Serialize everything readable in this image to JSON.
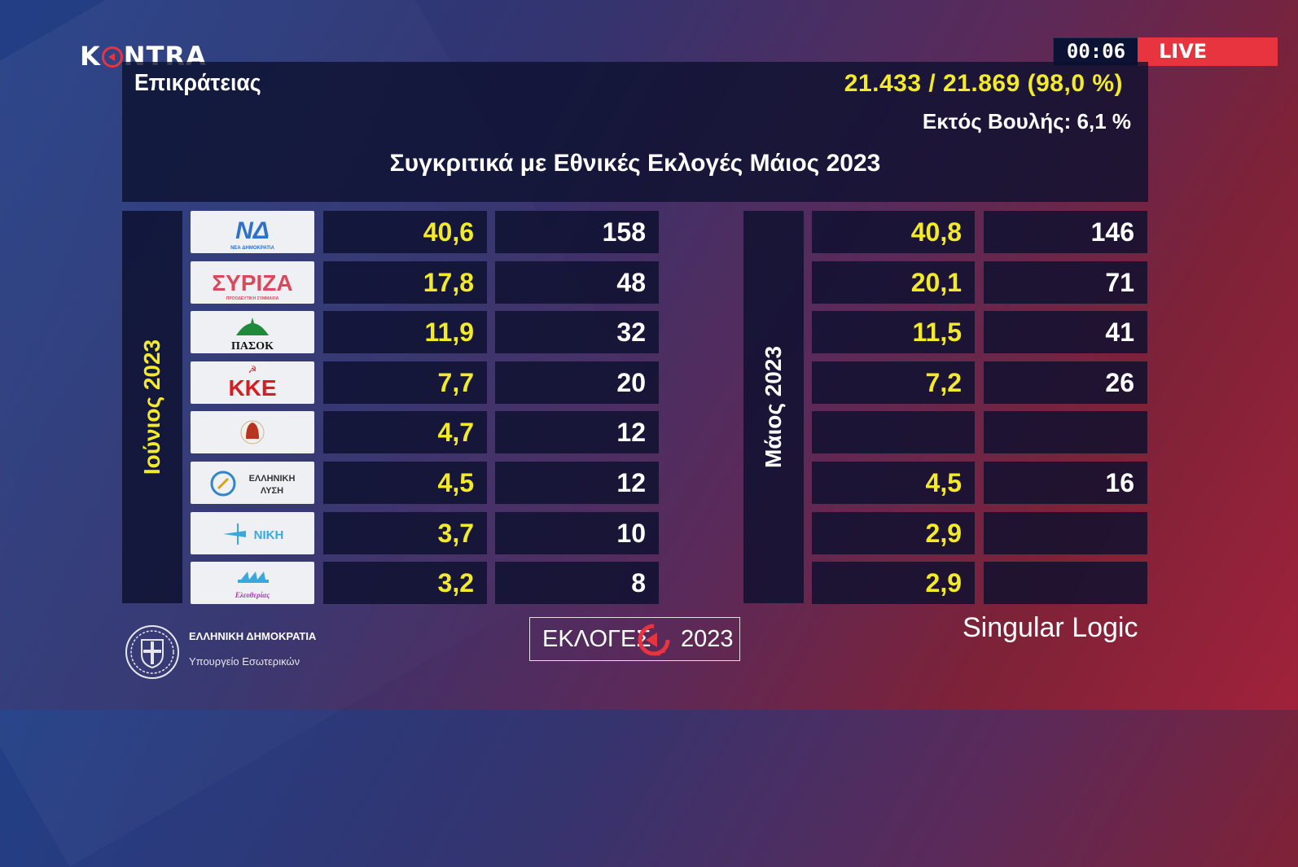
{
  "broadcast": {
    "channel": "KONTRA",
    "clock": "00:06",
    "live_label": "LIVE"
  },
  "header": {
    "region": "Επικράτειας",
    "counted": "21.433 / 21.869  (98,0 %)",
    "outside_parliament": "Εκτός Βουλής: 6,1 %",
    "subtitle": "Συγκριτικά με Εθνικές Εκλογές Μάιος 2023"
  },
  "columns": {
    "june_label": "Ιούνιος 2023",
    "may_label": "Μάιος 2023"
  },
  "parties": [
    {
      "name": "ΝΔ",
      "logo_text": "ΝΔ",
      "logo_sub": "ΝΕΑ ΔΗΜΟΚΡΑΤΙΑ",
      "logo_color": "#2c72c9",
      "june_pct": "40,6",
      "june_seats": "158",
      "may_pct": "40,8",
      "may_seats": "146"
    },
    {
      "name": "ΣΥΡΙΖΑ",
      "logo_text": "ΣΥΡΙΖΑ",
      "logo_sub": "ΠΡΟΟΔΕΥΤΙΚΗ ΣΥΜΜΑΧΙΑ",
      "logo_color": "#d8495b",
      "june_pct": "17,8",
      "june_seats": "48",
      "may_pct": "20,1",
      "may_seats": "71"
    },
    {
      "name": "ΠΑΣΟΚ",
      "logo_text": "ΠΑΣΟΚ",
      "logo_sub": "",
      "logo_color": "#1f8a3a",
      "june_pct": "11,9",
      "june_seats": "32",
      "may_pct": "11,5",
      "may_seats": "41"
    },
    {
      "name": "ΚΚΕ",
      "logo_text": "ΚΚΕ",
      "logo_sub": "",
      "logo_color": "#d51e22",
      "june_pct": "7,7",
      "june_seats": "20",
      "may_pct": "7,2",
      "may_seats": "26"
    },
    {
      "name": "Σπαρτιάτες",
      "logo_text": "",
      "logo_sub": "",
      "logo_color": "#b8341f",
      "june_pct": "4,7",
      "june_seats": "12",
      "may_pct": "",
      "may_seats": ""
    },
    {
      "name": "Ελληνική Λύση",
      "logo_text": "ΕΛΛΗΝΙΚΗ",
      "logo_sub": "ΛΥΣΗ",
      "logo_color": "#2f86c9",
      "june_pct": "4,5",
      "june_seats": "12",
      "may_pct": "4,5",
      "may_seats": "16"
    },
    {
      "name": "ΝΙΚΗ",
      "logo_text": "ΝΙΚΗ",
      "logo_sub": "",
      "logo_color": "#3aa8dc",
      "june_pct": "3,7",
      "june_seats": "10",
      "may_pct": "2,9",
      "may_seats": ""
    },
    {
      "name": "Πλεύση Ελευθερίας",
      "logo_text": "",
      "logo_sub": "Ελευθερίας",
      "logo_color": "#9b3fa8",
      "june_pct": "3,2",
      "june_seats": "8",
      "may_pct": "2,9",
      "may_seats": ""
    }
  ],
  "footer": {
    "gov_line1": "ΕΛΛΗΝΙΚΗ ΔΗΜΟΚΡΑΤΙΑ",
    "gov_line2": "Υπουργείο Εσωτερικών",
    "elections_word": "ΕΚΛΟΓΕΣ",
    "elections_year": "2023",
    "provider": "Singular Logic"
  },
  "colors": {
    "accent_yellow": "#f3ea2a",
    "live_red": "#e8343f",
    "panel": "#0c102e"
  }
}
